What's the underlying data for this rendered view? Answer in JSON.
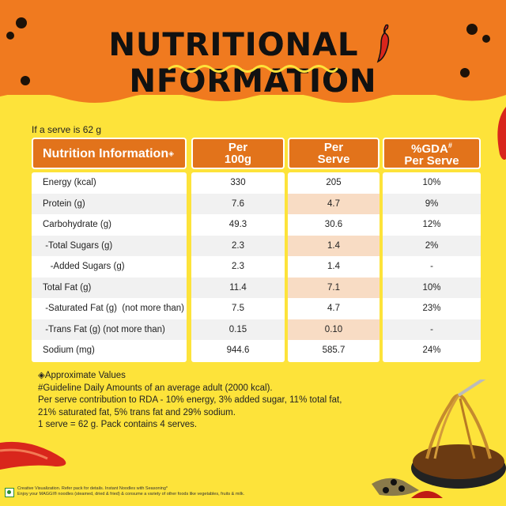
{
  "header": {
    "title_part1": "NUTRITIONAL",
    "title_part2": "NFORMATION"
  },
  "serve_note": "If a serve is 62 g",
  "table": {
    "headers": [
      {
        "line1": "Nutrition Information",
        "sup": "◈",
        "line2": ""
      },
      {
        "line1": "Per",
        "line2": "100g"
      },
      {
        "line1": "Per",
        "line2": "Serve"
      },
      {
        "line1": "%GDA",
        "sup": "#",
        "line2": "Per Serve"
      }
    ],
    "rows": [
      {
        "name": "Energy (kcal)",
        "per100": "330",
        "perServe": "205",
        "gda": "10%"
      },
      {
        "name": "Protein (g)",
        "per100": "7.6",
        "perServe": "4.7",
        "gda": "9%"
      },
      {
        "name": "Carbohydrate (g)",
        "per100": "49.3",
        "perServe": "30.6",
        "gda": "12%"
      },
      {
        "name": " -Total Sugars (g)",
        "per100": "2.3",
        "perServe": "1.4",
        "gda": "2%"
      },
      {
        "name": "   -Added Sugars (g)",
        "per100": "2.3",
        "perServe": "1.4",
        "gda": "-"
      },
      {
        "name": "Total Fat (g)",
        "per100": "11.4",
        "perServe": "7.1",
        "gda": "10%"
      },
      {
        "name": " -Saturated Fat (g)  (not more than)",
        "per100": "7.5",
        "perServe": "4.7",
        "gda": "23%"
      },
      {
        "name": " -Trans Fat (g) (not more than)",
        "per100": "0.15",
        "perServe": "0.10",
        "gda": "-"
      },
      {
        "name": "Sodium (mg)",
        "per100": "944.6",
        "perServe": "585.7",
        "gda": "24%"
      }
    ]
  },
  "notes": {
    "line1": "◈Approximate Values",
    "line2": "#Guideline Daily Amounts of an average adult (2000 kcal).",
    "line3": "Per serve contribution to RDA - 10% energy, 3% added sugar, 11% total fat,",
    "line4": "21% saturated fat, 5% trans fat and 29% sodium.",
    "line5": "1 serve = 62 g. Pack contains 4 serves."
  },
  "footer": {
    "line1": "Creative Visualization. Refer pack for details. Instant Noodles with Seasoning*",
    "line2": "Enjoy your MAGGI® noodles (steamed, dried & fried) & consume a variety of other foods like vegetables, fruits & milk."
  },
  "colors": {
    "header_orange": "#f07a1f",
    "background_yellow": "#fde33a",
    "table_header": "#e2731b"
  }
}
